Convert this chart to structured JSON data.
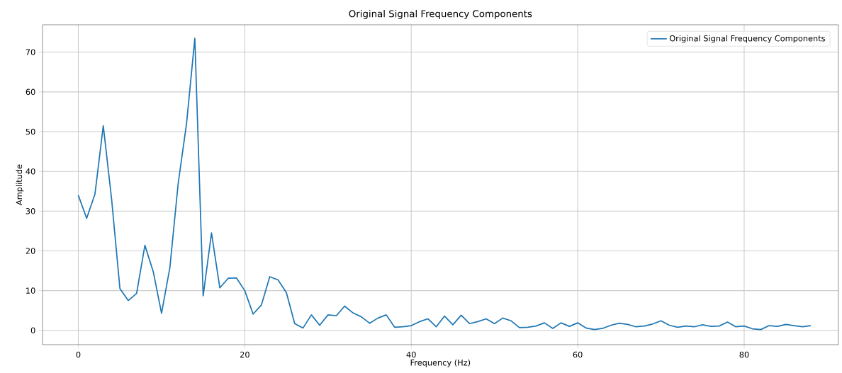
{
  "chart_data": {
    "type": "line",
    "title": "Original Signal Frequency Components",
    "xlabel": "Frequency (Hz)",
    "ylabel": "Amplitude",
    "x": [
      0,
      1,
      2,
      3,
      4,
      5,
      6,
      7,
      8,
      9,
      10,
      11,
      12,
      13,
      14,
      15,
      16,
      17,
      18,
      19,
      20,
      21,
      22,
      23,
      24,
      25,
      26,
      27,
      28,
      29,
      30,
      31,
      32,
      33,
      34,
      35,
      36,
      37,
      38,
      39,
      40,
      41,
      42,
      43,
      44,
      45,
      46,
      47,
      48,
      49,
      50,
      51,
      52,
      53,
      54,
      55,
      56,
      57,
      58,
      59,
      60,
      61,
      62,
      63,
      64,
      65,
      66,
      67,
      68,
      69,
      70,
      71,
      72,
      73,
      74,
      75,
      76,
      77,
      78,
      79,
      80,
      81,
      82,
      83,
      84,
      85,
      86,
      87,
      88
    ],
    "series": [
      {
        "name": "Original Signal Frequency Components",
        "color": "#1f77b4",
        "values": [
          34,
          28.2,
          34.3,
          51.5,
          33,
          10.5,
          7.5,
          9.3,
          21.4,
          14.8,
          4.3,
          15.8,
          37,
          52,
          73.5,
          8.7,
          24.5,
          10.7,
          13.1,
          13.2,
          10,
          4.1,
          6.4,
          13.5,
          12.7,
          9.5,
          1.7,
          0.6,
          3.9,
          1.3,
          3.9,
          3.7,
          6.1,
          4.4,
          3.4,
          1.8,
          3.1,
          3.9,
          0.8,
          0.9,
          1.2,
          2.2,
          2.9,
          0.9,
          3.6,
          1.4,
          3.8,
          1.7,
          2.2,
          2.9,
          1.7,
          3.1,
          2.4,
          0.7,
          0.8,
          1.1,
          1.9,
          0.5,
          1.9,
          1.0,
          1.9,
          0.6,
          0.2,
          0.5,
          1.3,
          1.8,
          1.5,
          0.9,
          1.1,
          1.6,
          2.4,
          1.3,
          0.8,
          1.1,
          0.9,
          1.4,
          1.0,
          1.1,
          2.1,
          0.9,
          1.1,
          0.4,
          0.2,
          1.2,
          1.0,
          1.5,
          1.2,
          0.9,
          1.2
        ]
      }
    ],
    "xlim": [
      -4.3,
      91.3
    ],
    "ylim": [
      -3.6,
      76.9
    ],
    "xticks": [
      0,
      20,
      40,
      60,
      80
    ],
    "yticks": [
      0,
      10,
      20,
      30,
      40,
      50,
      60,
      70
    ],
    "grid": true,
    "legend": "top right",
    "marker": "none",
    "line_style": "solid"
  }
}
